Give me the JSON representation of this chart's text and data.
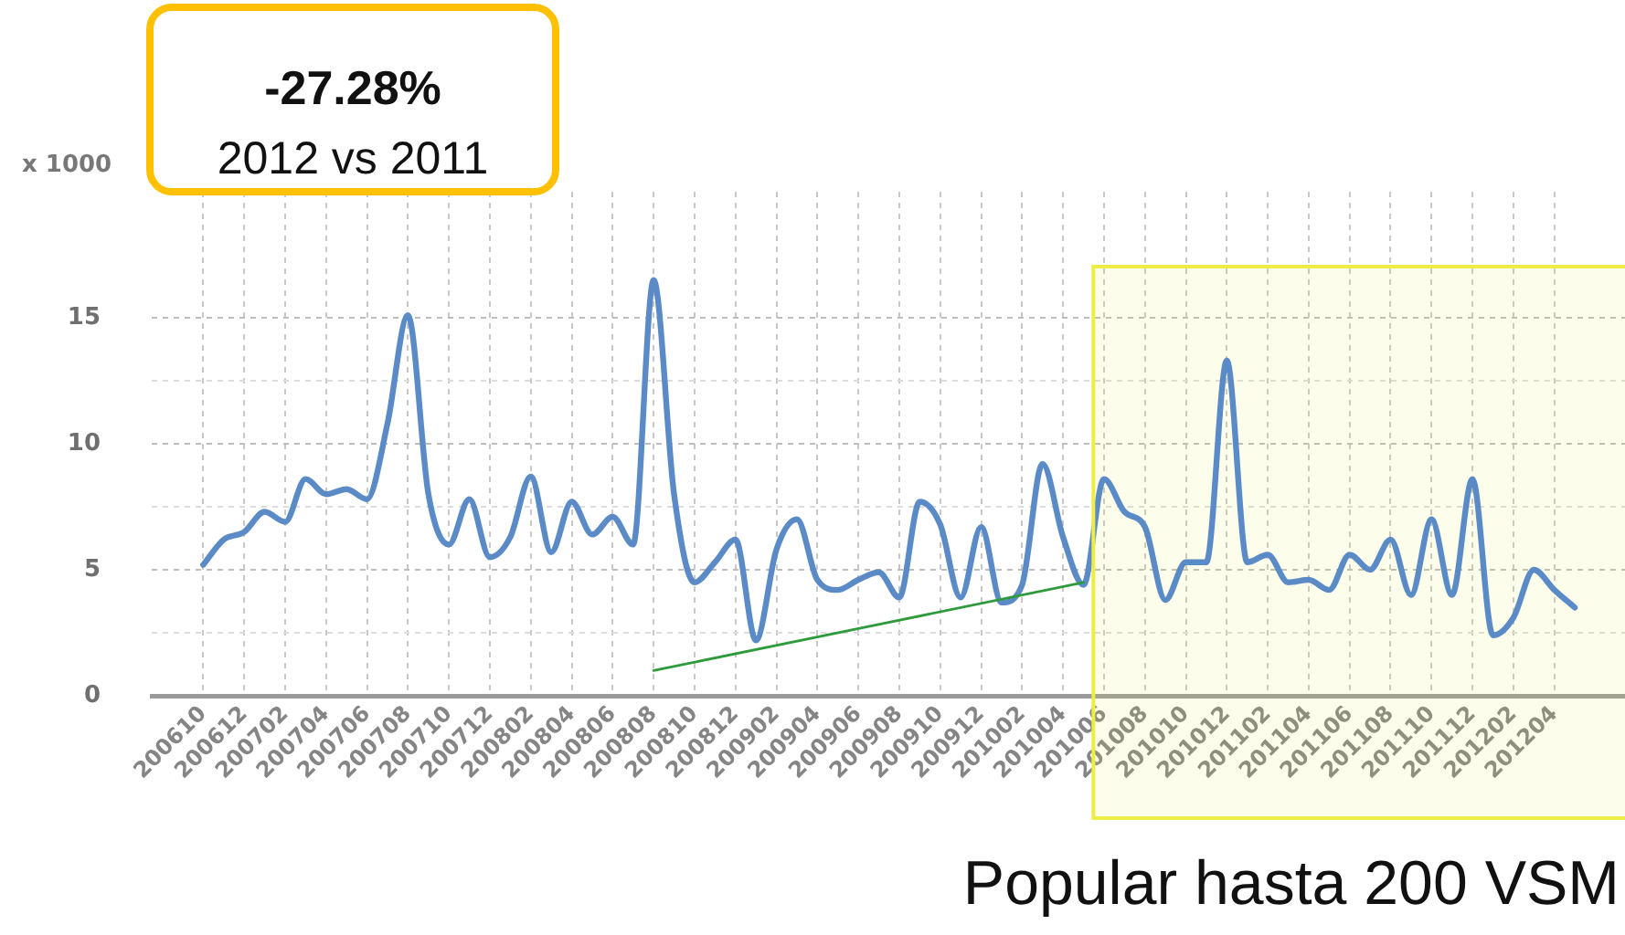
{
  "chart_data": {
    "type": "line",
    "title": "Popular hasta 200 VSM",
    "ylabel": "x 1000",
    "annotations": [
      "-27.28%",
      "2012 vs 2011"
    ],
    "x": [
      "2006-10",
      "2006-11",
      "2006-12",
      "2007-01",
      "2007-02",
      "2007-03",
      "2007-04",
      "2007-05",
      "2007-06",
      "2007-07",
      "2007-08",
      "2007-09",
      "2007-10",
      "2007-11",
      "2007-12",
      "2008-01",
      "2008-02",
      "2008-03",
      "2008-04",
      "2008-05",
      "2008-06",
      "2008-07",
      "2008-08",
      "2008-09",
      "2008-10",
      "2008-11",
      "2008-12",
      "2009-01",
      "2009-02",
      "2009-03",
      "2009-04",
      "2009-05",
      "2009-06",
      "2009-07",
      "2009-08",
      "2009-09",
      "2009-10",
      "2009-11",
      "2009-12",
      "2010-01",
      "2010-02",
      "2010-03",
      "2010-04",
      "2010-05",
      "2010-06",
      "2010-07",
      "2010-08",
      "2010-09",
      "2010-10",
      "2010-11",
      "2010-12",
      "2011-01",
      "2011-02",
      "2011-03",
      "2011-04",
      "2011-05",
      "2011-06",
      "2011-07",
      "2011-08",
      "2011-09",
      "2011-10",
      "2011-11",
      "2011-12",
      "2012-01",
      "2012-02",
      "2012-03",
      "2012-04",
      "2012-05"
    ],
    "series": [
      {
        "color": "#5b8bc7",
        "values": [
          5.2,
          6.2,
          6.5,
          7.3,
          6.9,
          8.6,
          8.0,
          8.2,
          7.8,
          10.8,
          15.1,
          8.0,
          6.0,
          7.8,
          5.5,
          6.3,
          8.7,
          5.7,
          7.7,
          6.4,
          7.1,
          6.0,
          16.5,
          8.0,
          4.5,
          5.3,
          6.2,
          2.2,
          5.8,
          7.0,
          4.6,
          4.2,
          4.6,
          4.9,
          3.9,
          7.7,
          6.8,
          3.9,
          6.7,
          3.7,
          4.4,
          9.2,
          6.3,
          4.4,
          8.6,
          7.3,
          6.7,
          3.8,
          5.3,
          5.3,
          13.3,
          5.3,
          5.6,
          4.5,
          4.6,
          4.2,
          5.6,
          5.0,
          6.2,
          4.0,
          7.0,
          4.0,
          8.6,
          2.4,
          3.1,
          5.0,
          4.2,
          3.5
        ]
      },
      {
        "type": "line",
        "color": "#2f9a3c",
        "x": [
          "2008-08",
          "2010-05"
        ],
        "values": [
          1.0,
          4.5
        ]
      }
    ],
    "bands": [
      {
        "axis": "x",
        "from": "2010-05-16",
        "to": "2012-07-15",
        "color": "#eded45"
      }
    ],
    "xlim": [
      "2006-07-16",
      "2012-07-15"
    ],
    "xticks": [
      {
        "value": "2006-10",
        "label": "200610"
      },
      {
        "value": "2006-12",
        "label": "200612"
      },
      {
        "value": "2007-02",
        "label": "200702"
      },
      {
        "value": "2007-04",
        "label": "200704"
      },
      {
        "value": "2007-06",
        "label": "200706"
      },
      {
        "value": "2007-08",
        "label": "200708"
      },
      {
        "value": "2007-10",
        "label": "200710"
      },
      {
        "value": "2007-12",
        "label": "200712"
      },
      {
        "value": "2008-02",
        "label": "200802"
      },
      {
        "value": "2008-04",
        "label": "200804"
      },
      {
        "value": "2008-06",
        "label": "200806"
      },
      {
        "value": "2008-08",
        "label": "200808"
      },
      {
        "value": "2008-10",
        "label": "200810"
      },
      {
        "value": "2008-12",
        "label": "200812"
      },
      {
        "value": "2009-02",
        "label": "200902"
      },
      {
        "value": "2009-04",
        "label": "200904"
      },
      {
        "value": "2009-06",
        "label": "200906"
      },
      {
        "value": "2009-08",
        "label": "200908"
      },
      {
        "value": "2009-10",
        "label": "200910"
      },
      {
        "value": "2009-12",
        "label": "200912"
      },
      {
        "value": "2010-02",
        "label": "201002"
      },
      {
        "value": "2010-04",
        "label": "201004"
      },
      {
        "value": "2010-06",
        "label": "201006"
      },
      {
        "value": "2010-08",
        "label": "201008"
      },
      {
        "value": "2010-10",
        "label": "201010"
      },
      {
        "value": "2010-12",
        "label": "201012"
      },
      {
        "value": "2011-02",
        "label": "201102"
      },
      {
        "value": "2011-04",
        "label": "201104"
      },
      {
        "value": "2011-06",
        "label": "201106"
      },
      {
        "value": "2011-08",
        "label": "201108"
      },
      {
        "value": "2011-10",
        "label": "201110"
      },
      {
        "value": "2011-12",
        "label": "201112"
      },
      {
        "value": "2012-02",
        "label": "201202"
      },
      {
        "value": "2012-04",
        "label": "201204"
      }
    ],
    "ylim": [
      0,
      20
    ],
    "yticks": [
      0,
      {
        "value": 2.5,
        "label": null
      },
      5,
      {
        "value": 7.5,
        "label": null
      },
      10,
      {
        "value": 12.5,
        "label": null
      },
      15
    ],
    "grid": true,
    "marker": "none"
  }
}
